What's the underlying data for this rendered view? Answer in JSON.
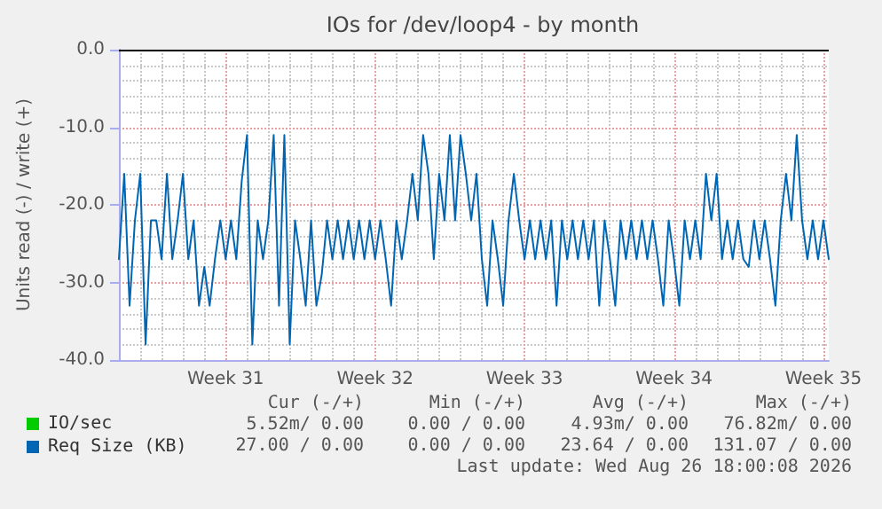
{
  "chart_data": {
    "type": "line",
    "title": "IOs for /dev/loop4 - by month",
    "ylabel": "Units read (-) / write (+)",
    "categories": [
      null,
      null,
      null,
      null,
      null,
      null,
      null,
      null,
      null,
      null,
      null,
      null,
      null,
      null,
      null,
      null,
      null,
      null,
      null,
      null,
      "Week 31",
      null,
      null,
      null,
      null,
      null,
      null,
      null,
      null,
      null,
      null,
      null,
      null,
      null,
      null,
      null,
      null,
      null,
      null,
      null,
      null,
      null,
      null,
      null,
      null,
      null,
      null,
      null,
      "Week 32",
      null,
      null,
      null,
      null,
      null,
      null,
      null,
      null,
      null,
      null,
      null,
      null,
      null,
      null,
      null,
      null,
      null,
      null,
      null,
      null,
      null,
      null,
      null,
      null,
      null,
      null,
      null,
      "Week 33",
      null,
      null,
      null,
      null,
      null,
      null,
      null,
      null,
      null,
      null,
      null,
      null,
      null,
      null,
      null,
      null,
      null,
      null,
      null,
      null,
      null,
      null,
      null,
      null,
      null,
      null,
      null,
      "Week 34",
      null,
      null,
      null,
      null,
      null,
      null,
      null,
      null,
      null,
      null,
      null,
      null,
      null,
      null,
      null,
      null,
      null,
      null,
      null,
      null,
      null,
      null,
      null,
      null,
      null,
      null,
      null,
      "Week 35",
      null
    ],
    "ylim": [
      -40,
      0
    ],
    "yticks": [
      {
        "value": -40,
        "label": "-40.0"
      },
      {
        "value": -30,
        "label": "-30.0"
      },
      {
        "value": -20,
        "label": "-20.0"
      },
      {
        "value": -10,
        "label": "-10.0"
      },
      {
        "value": 0,
        "label": "0.0"
      }
    ],
    "grid": true,
    "legend": "bottom left",
    "marker": "none",
    "line_style": "solid",
    "ref_lines": [
      {
        "axis": "y",
        "value": 0,
        "color": "#000000"
      }
    ],
    "series": [
      {
        "name": "IO/sec",
        "color": "#00cc00",
        "values": [
          null,
          null,
          null,
          null,
          null,
          null,
          null,
          null,
          null,
          null,
          null,
          null,
          null,
          null,
          null,
          null,
          null,
          null,
          null,
          null,
          null,
          null,
          null,
          null,
          null,
          null,
          null,
          null,
          null,
          null,
          null,
          null,
          null,
          null,
          null,
          null,
          null,
          null,
          null,
          null,
          null,
          null,
          null,
          null,
          null,
          null,
          null,
          null,
          null,
          null,
          null,
          null,
          null,
          null,
          null,
          null,
          null,
          null,
          null,
          null,
          null,
          null,
          null,
          null,
          null,
          null,
          null,
          null,
          null,
          null,
          null,
          null,
          null,
          null,
          null,
          null,
          null,
          null,
          null,
          null,
          null,
          null,
          null,
          null,
          null,
          null,
          null,
          null,
          null,
          null,
          null,
          null,
          null,
          null,
          null,
          null,
          null,
          null,
          null,
          null,
          null,
          null,
          null,
          null,
          null,
          null,
          null,
          null,
          null,
          null,
          null,
          null,
          null,
          null,
          null,
          null,
          null,
          null,
          null,
          null,
          null,
          null,
          null,
          null,
          null,
          null,
          null,
          null,
          null,
          null,
          null,
          null,
          null,
          null
        ]
      },
      {
        "name": "Req Size (KB)",
        "color": "#0066b3",
        "values": [
          -27,
          -16,
          -33,
          -22,
          -16,
          -38,
          -22,
          -22,
          -27,
          -16,
          -27,
          -22,
          -16,
          -27,
          -22,
          -33,
          -28,
          -33,
          -27,
          -22,
          -27,
          -22,
          -27,
          -17,
          -11,
          -38,
          -22,
          -27,
          -22,
          -11,
          -33,
          -11,
          -38,
          -22,
          -27,
          -33,
          -22,
          -33,
          -29,
          -22,
          -27,
          -22,
          -27,
          -22,
          -27,
          -22,
          -27,
          -22,
          -27,
          -22,
          -27,
          -33,
          -22,
          -27,
          -22,
          -16,
          -22,
          -11,
          -16,
          -27,
          -16,
          -22,
          -11,
          -22,
          -11,
          -16,
          -22,
          -16,
          -27,
          -33,
          -22,
          -27,
          -33,
          -22,
          -16,
          -22,
          -27,
          -22,
          -27,
          -22,
          -27,
          -22,
          -33,
          -22,
          -27,
          -22,
          -27,
          -22,
          -27,
          -22,
          -33,
          -22,
          -27,
          -33,
          -22,
          -27,
          -22,
          -27,
          -22,
          -27,
          -22,
          -27,
          -33,
          -22,
          -27,
          -33,
          -22,
          -27,
          -22,
          -27,
          -16,
          -22,
          -16,
          -27,
          -22,
          -27,
          -22,
          -27,
          -28,
          -22,
          -27,
          -22,
          -27,
          -33,
          -22,
          -16,
          -22,
          -11,
          -22,
          -27,
          -22,
          -27,
          -22,
          -27
        ]
      }
    ],
    "annotations": [
      "Cur (-/+)",
      "Min (-/+)",
      "Avg (-/+)",
      "Max (-/+)",
      "5.52m/ 0.00",
      "0.00 / 0.00",
      "4.93m/ 0.00",
      "76.82m/ 0.00",
      "27.00 / 0.00",
      "0.00 / 0.00",
      "23.64 / 0.00",
      "131.07 / 0.00",
      "Last update: Wed Aug 26 18:00:08 2026"
    ]
  }
}
